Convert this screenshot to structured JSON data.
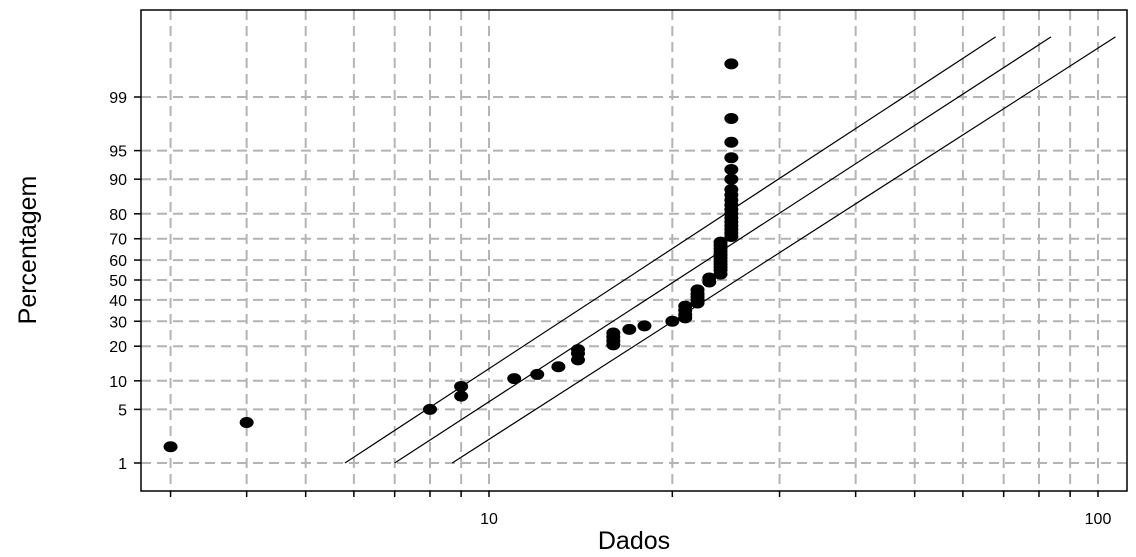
{
  "chart_data": {
    "type": "scatter",
    "title": "",
    "xlabel": "Dados",
    "ylabel": "Percentagem",
    "x_scale": "log",
    "y_scale": "normal-probability",
    "xlim": [
      2.5,
      105
    ],
    "x_ticks": [
      10,
      100
    ],
    "x_tick_labels": [
      "10",
      "100"
    ],
    "y_ticks": [
      1,
      5,
      10,
      20,
      30,
      40,
      50,
      60,
      70,
      80,
      90,
      95,
      99
    ],
    "y_tick_labels": [
      "1",
      "5",
      "10",
      "20",
      "30",
      "40",
      "50",
      "60",
      "70",
      "80",
      "90",
      "95",
      "99"
    ],
    "grid": true,
    "legend": "none",
    "series": [
      {
        "points": [
          [
            3,
            1.7
          ],
          [
            4,
            3.5
          ],
          [
            8,
            5
          ],
          [
            9,
            7
          ],
          [
            9,
            8.8
          ],
          [
            11,
            10.5
          ],
          [
            12,
            11.5
          ],
          [
            13,
            13.5
          ],
          [
            14,
            15.5
          ],
          [
            14,
            17.5
          ],
          [
            14,
            18.8
          ],
          [
            16,
            20.5
          ],
          [
            16,
            22
          ],
          [
            16,
            23.5
          ],
          [
            16,
            25
          ],
          [
            17,
            26.5
          ],
          [
            18,
            28
          ],
          [
            20,
            30
          ],
          [
            21,
            31.5
          ],
          [
            21,
            33
          ],
          [
            21,
            35
          ],
          [
            21,
            37
          ],
          [
            22,
            38.5
          ],
          [
            22,
            40
          ],
          [
            22,
            41.5
          ],
          [
            22,
            43
          ],
          [
            22,
            45
          ],
          [
            23,
            49
          ],
          [
            23,
            51
          ],
          [
            24,
            53
          ],
          [
            24,
            55
          ],
          [
            24,
            56.5
          ],
          [
            24,
            58
          ],
          [
            24,
            59.5
          ],
          [
            24,
            61
          ],
          [
            24,
            62.5
          ],
          [
            24,
            64
          ],
          [
            24,
            65.5
          ],
          [
            24,
            67
          ],
          [
            24,
            68.5
          ],
          [
            25,
            71
          ],
          [
            25,
            72.5
          ],
          [
            25,
            74
          ],
          [
            25,
            75.5
          ],
          [
            25,
            77
          ],
          [
            25,
            78.5
          ],
          [
            25,
            80
          ],
          [
            25,
            81.5
          ],
          [
            25,
            83
          ],
          [
            25,
            84.5
          ],
          [
            25,
            86
          ],
          [
            25,
            87.5
          ],
          [
            25,
            90
          ],
          [
            25,
            92
          ],
          [
            25,
            94
          ],
          [
            25,
            96
          ],
          [
            25,
            98
          ],
          [
            25,
            99.7
          ]
        ]
      }
    ],
    "reference_lines": [
      {
        "x_at_1": 5.8,
        "x_at_99": 48
      },
      {
        "x_at_1": 7.0,
        "x_at_99": 59
      },
      {
        "x_at_1": 8.7,
        "x_at_99": 75
      }
    ],
    "reference_line_extent": [
      1,
      99.9
    ]
  }
}
